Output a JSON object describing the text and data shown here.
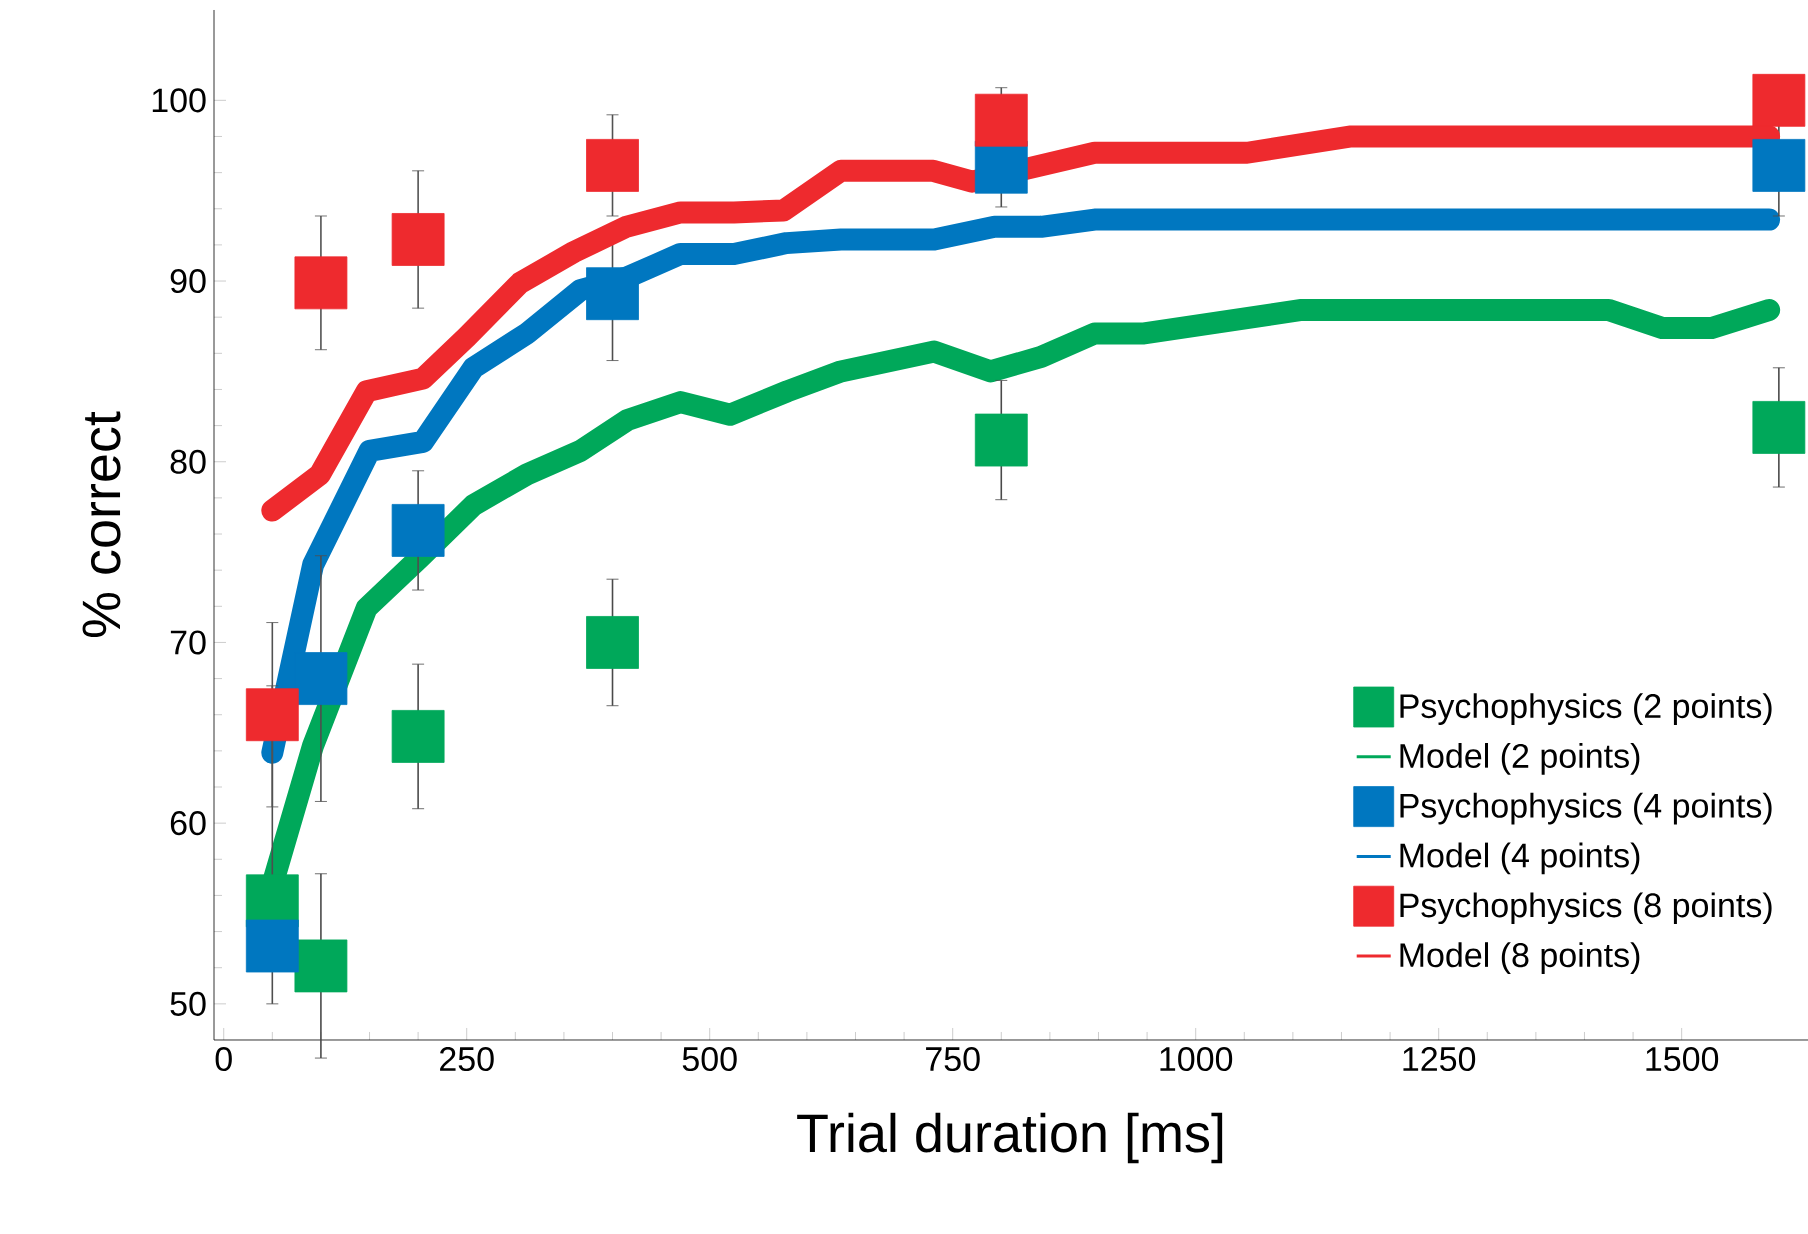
{
  "chart_data": {
    "type": "scatter",
    "xlabel": "Trial duration [ms]",
    "ylabel": "% correct",
    "xlim": [
      -10,
      1630
    ],
    "ylim": [
      48,
      105
    ],
    "xticks": [
      0,
      250,
      500,
      750,
      1000,
      1250,
      1500
    ],
    "yticks": [
      50,
      60,
      70,
      80,
      90,
      100
    ],
    "grid": false,
    "legend": "bottom right",
    "series": [
      {
        "name": "Psychophysics (2 points)",
        "marker": "square",
        "color": "#00a85a",
        "x": [
          50,
          100,
          200,
          400,
          800,
          1600
        ],
        "values": [
          55.7,
          52.1,
          64.8,
          70,
          81.2,
          81.9
        ],
        "errors": [
          null,
          5.1,
          4,
          3.5,
          3.3,
          3.3
        ]
      },
      {
        "name": "Model (2 points)",
        "type": "line",
        "marker": "none",
        "line_style": "solid",
        "color": "#00a85a",
        "x": [
          50,
          92,
          147,
          202,
          257,
          312,
          367,
          415,
          470,
          521,
          580,
          635,
          731,
          789,
          841,
          896,
          947,
          1109,
          1425,
          1480,
          1531,
          1590
        ],
        "values": [
          56.6,
          64.3,
          71.9,
          74.7,
          77.6,
          79.3,
          80.6,
          82.3,
          83.3,
          82.6,
          83.9,
          85,
          86.1,
          85,
          85.8,
          87.1,
          87.1,
          88.4,
          88.4,
          87.4,
          87.4,
          88.4
        ]
      },
      {
        "name": "Psychophysics (4 points)",
        "marker": "square",
        "color": "#0077c0",
        "x": [
          50,
          100,
          200,
          400,
          800,
          1600
        ],
        "values": [
          53.2,
          68,
          76.2,
          89.3,
          96.3,
          96.4
        ],
        "errors": [
          [
            50,
            67.6
          ],
          6.8,
          3.3,
          3.7,
          2.2,
          2.8
        ]
      },
      {
        "name": "Model (4 points)",
        "type": "line",
        "marker": "none",
        "line_style": "solid",
        "color": "#0077c0",
        "x": [
          50,
          92,
          150,
          205,
          257,
          312,
          367,
          415,
          470,
          525,
          579,
          635,
          731,
          793,
          841,
          896,
          1590
        ],
        "values": [
          63.9,
          74.3,
          80.6,
          81.1,
          85.2,
          87.1,
          89.5,
          90.2,
          91.5,
          91.5,
          92.1,
          92.3,
          92.3,
          93,
          93,
          93.4,
          93.4
        ]
      },
      {
        "name": "Psychophysics (8 points)",
        "marker": "square",
        "color": "#ee2a2e",
        "x": [
          50,
          100,
          200,
          400,
          800,
          1600
        ],
        "values": [
          66,
          89.9,
          92.3,
          96.4,
          98.9,
          100
        ],
        "errors": [
          5.1,
          3.7,
          3.8,
          2.8,
          1.8,
          null
        ]
      },
      {
        "name": "Model (8 points)",
        "type": "line",
        "marker": "none",
        "line_style": "solid",
        "color": "#ee2a2e",
        "x": [
          50,
          99,
          147,
          205,
          250,
          305,
          360,
          414,
          470,
          525,
          576,
          635,
          730,
          770,
          896,
          1053,
          1160,
          1590
        ],
        "values": [
          77.3,
          79.3,
          83.9,
          84.6,
          86.9,
          89.9,
          91.6,
          93,
          93.8,
          93.8,
          93.9,
          96.1,
          96.1,
          95.5,
          97.1,
          97.1,
          98,
          98
        ]
      }
    ]
  }
}
